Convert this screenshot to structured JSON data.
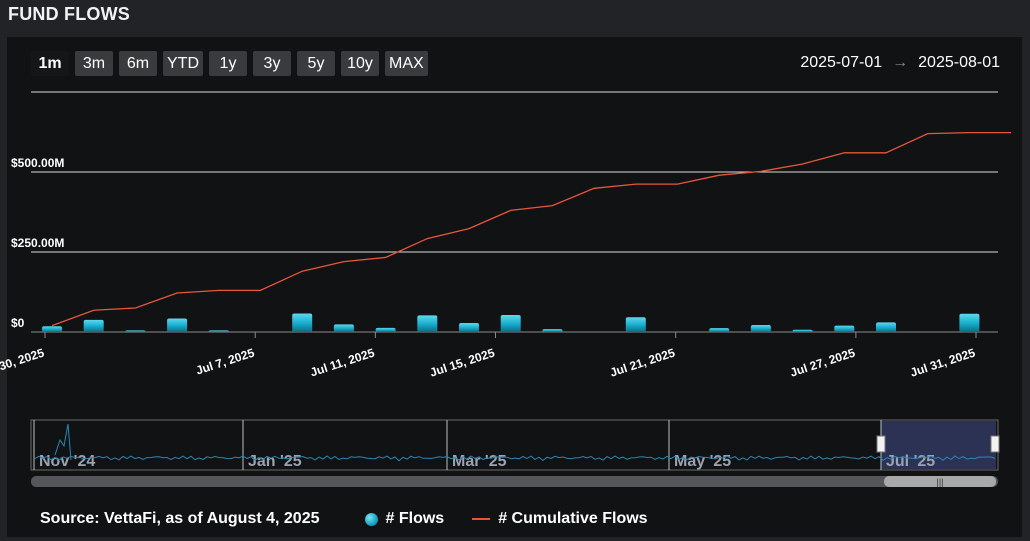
{
  "header": {
    "title": "FUND FLOWS"
  },
  "range_buttons": [
    {
      "label": "1m",
      "active": true
    },
    {
      "label": "3m",
      "active": false
    },
    {
      "label": "6m",
      "active": false
    },
    {
      "label": "YTD",
      "active": false
    },
    {
      "label": "1y",
      "active": false
    },
    {
      "label": "3y",
      "active": false
    },
    {
      "label": "5y",
      "active": false
    },
    {
      "label": "10y",
      "active": false
    },
    {
      "label": "MAX",
      "active": false
    }
  ],
  "date_range": {
    "from": "2025-07-01",
    "arrow": "→",
    "to": "2025-08-01"
  },
  "legend": {
    "source": "Source: VettaFi, as of August 4, 2025",
    "flows": "# Flows",
    "cumulative": "# Cumulative Flows"
  },
  "colors": {
    "bar": "#1ab0cf",
    "line": "#e8563a",
    "grid": "#d9d9d9",
    "navigator_highlight": "#2b3254"
  },
  "navigator": {
    "labels": [
      "Nov '24",
      "Jan '25",
      "Mar '25",
      "May '25",
      "Jul '25"
    ]
  },
  "chart_data": {
    "type": "bar+line",
    "y_tick_labels": [
      "$0",
      "$250.00M",
      "$500.00M"
    ],
    "y_ticks": [
      0,
      250,
      500
    ],
    "ylim": [
      0,
      750
    ],
    "x_tick_labels": [
      "Jun 30, 2025",
      "Jul 7, 2025",
      "Jul 11, 2025",
      "Jul 15, 2025",
      "Jul 21, 2025",
      "Jul 27, 2025",
      "Jul 31, 2025"
    ],
    "x_tick_days": [
      0,
      7,
      11,
      15,
      21,
      27,
      31
    ],
    "series": [
      {
        "name": "# Flows",
        "type": "bar",
        "x": [
          0,
          1,
          2,
          3,
          4,
          6,
          7,
          8,
          9,
          10,
          11,
          12,
          14,
          16,
          17,
          18,
          19,
          20,
          22
        ],
        "values": [
          18,
          38,
          5,
          42,
          5,
          58,
          24,
          13,
          52,
          28,
          53,
          9,
          46,
          12,
          22,
          7,
          20,
          30,
          57
        ]
      },
      {
        "name": "# Cumulative Flows",
        "type": "line",
        "x": [
          0,
          1,
          2,
          3,
          4,
          5,
          6,
          7,
          8,
          9,
          10,
          11,
          12,
          13,
          14,
          15,
          16,
          17,
          18,
          19,
          20,
          21,
          22,
          23
        ],
        "values": [
          20,
          68,
          75,
          122,
          130,
          130,
          190,
          220,
          233,
          292,
          323,
          380,
          395,
          449,
          462,
          462,
          490,
          502,
          525,
          560,
          560,
          620,
          623,
          623
        ]
      }
    ]
  }
}
